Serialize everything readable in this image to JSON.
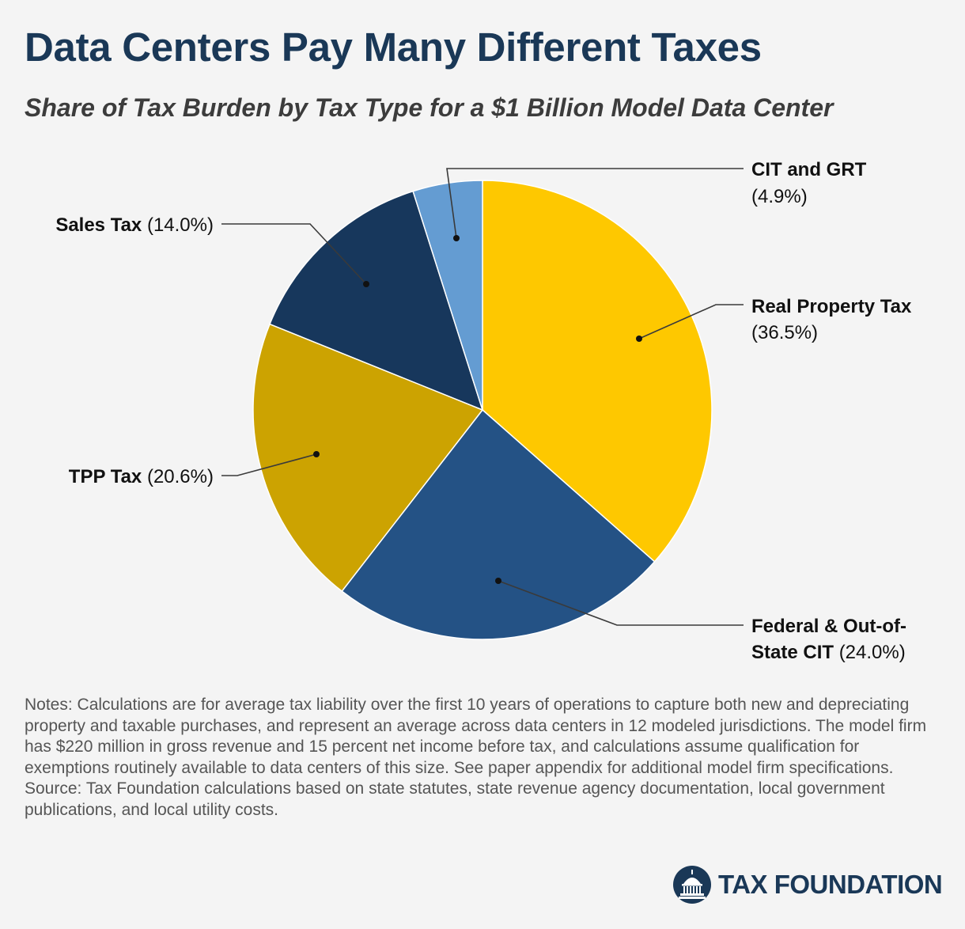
{
  "title": "Data Centers Pay Many Different Taxes",
  "subtitle": "Share of Tax Burden by Tax Type for a $1 Billion Model Data Center",
  "chart_data": {
    "type": "pie",
    "title": "Data Centers Pay Many Different Taxes",
    "subtitle": "Share of Tax Burden by Tax Type for a $1 Billion Model Data Center",
    "unit": "%",
    "slices": [
      {
        "name": "Real Property Tax",
        "value": 36.5,
        "value_label": "(36.5%)",
        "color": "#fec800"
      },
      {
        "name": "Federal & Out-of-State CIT",
        "value": 24.0,
        "value_label": "(24.0%)",
        "color": "#245285"
      },
      {
        "name": "TPP Tax",
        "value": 20.6,
        "value_label": "(20.6%)",
        "color": "#cca301"
      },
      {
        "name": "Sales Tax",
        "value": 14.0,
        "value_label": "(14.0%)",
        "color": "#17375c"
      },
      {
        "name": "CIT and GRT",
        "value": 4.9,
        "value_label": "(4.9%)",
        "color": "#649cd2"
      }
    ],
    "labels": {
      "real_property": {
        "name": "Real Property Tax",
        "value": "(36.5%)"
      },
      "federal_line1": "Federal & Out-of-",
      "federal_line2": "State CIT",
      "federal_value": "(24.0%)",
      "tpp": {
        "name": "TPP Tax",
        "value": "(20.6%)"
      },
      "sales": {
        "name": "Sales Tax",
        "value": "(14.0%)"
      },
      "cit_grt": {
        "name": "CIT and GRT",
        "value": "(4.9%)"
      }
    }
  },
  "notes": "Notes: Calculations are for average tax liability over the first 10 years of operations to capture both new and depreciating property and taxable purchases, and represent an average across data centers in 12 modeled jurisdictions. The model firm has $220 million in gross revenue and 15 percent net income before tax, and calculations assume qualification for exemptions routinely available to data centers of this size. See paper appendix for additional model firm specifications.",
  "source": "Source: Tax Foundation calculations based on state statutes, state revenue agency documentation, local government publications, and local utility costs.",
  "logo": {
    "text": "TAX FOUNDATION",
    "icon": "capitol-dome-icon"
  },
  "colors": {
    "title": "#1a3857",
    "background": "#f4f4f4"
  }
}
